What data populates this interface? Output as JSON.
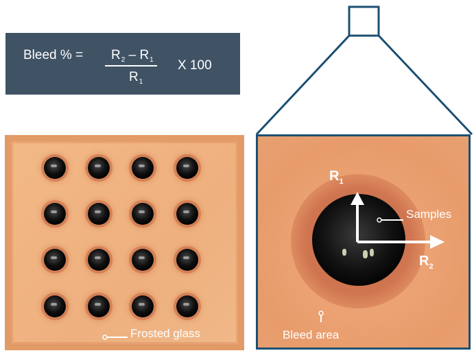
{
  "formula": {
    "lhs": "Bleed % =",
    "r2": "R",
    "r2_sub": "2",
    "minus": "–",
    "r1": "R",
    "r1_sub": "1",
    "den_r": "R",
    "den_sub": "1",
    "multiplier": "X 100"
  },
  "left_photo": {
    "label": "Frosted glass",
    "grid_rows": 4,
    "grid_cols": 4
  },
  "right_photo": {
    "r1_label": "R",
    "r1_sub": "1",
    "r2_label": "R",
    "r2_sub": "2",
    "samples_label": "Samples",
    "bleed_label": "Bleed area"
  },
  "colors": {
    "formula_bg": "#3f5365",
    "outline": "#1c4f72",
    "label_text": "#ffffff"
  }
}
